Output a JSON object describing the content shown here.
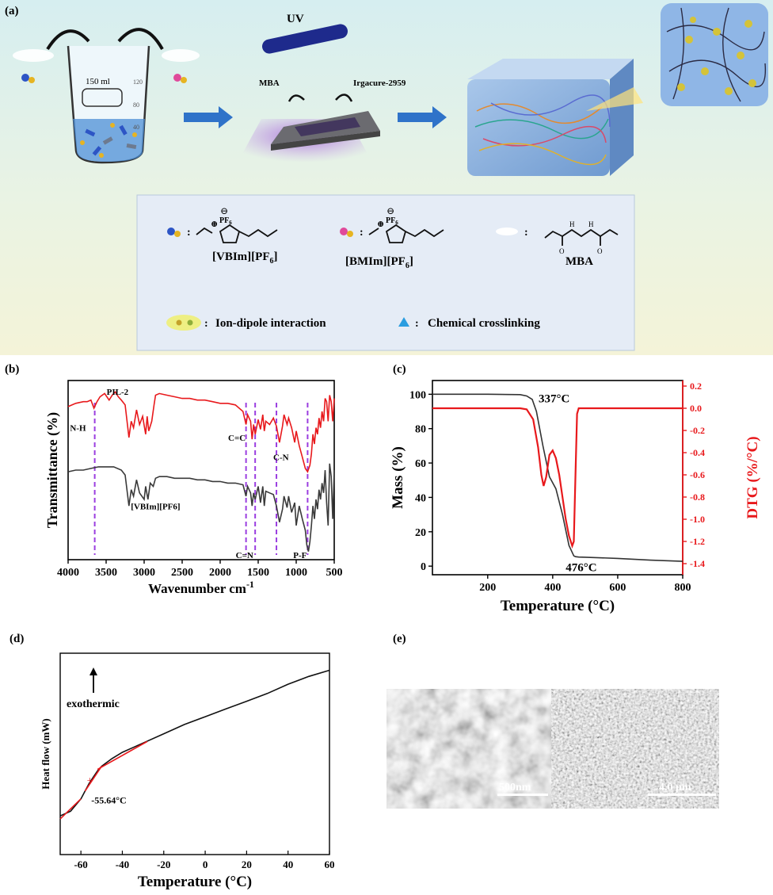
{
  "panel_labels": {
    "a": "(a)",
    "b": "(b)",
    "c": "(c)",
    "d": "(d)",
    "e": "(e)"
  },
  "schematic": {
    "uv_label": "UV",
    "beaker_volume": "150 ml",
    "beaker_marks": [
      "120",
      "80",
      "40"
    ],
    "mba_label": "MBA",
    "initiator_label": "Irgacure-2959",
    "vbim_name": "[VBIm][PF",
    "vbim_sub": "6",
    "bmim_name": "[BMIm][PF",
    "bmim_sub": "6",
    "mba_name": "MBA",
    "pf6": "PF",
    "pf6_sub": "6",
    "legend_ion": "Ion-dipole interaction",
    "legend_cross": "Chemical crosslinking",
    "colon": ":"
  },
  "chart_data": [
    {
      "id": "ftir",
      "type": "line",
      "xlabel": "Wavenumber cm",
      "xlabel_sup": "-1",
      "ylabel": "Transmittance (%)",
      "xlim": [
        4000,
        500
      ],
      "xticks": [
        4000,
        3500,
        3000,
        2500,
        2000,
        1500,
        1000,
        500
      ],
      "series": [
        {
          "name": "PIL-2",
          "color": "#e8191c",
          "x": [
            4000,
            3900,
            3800,
            3750,
            3700,
            3660,
            3620,
            3580,
            3520,
            3460,
            3420,
            3380,
            3340,
            3300,
            3250,
            3200,
            3170,
            3140,
            3100,
            3060,
            3020,
            2980,
            2960,
            2940,
            2900,
            2870,
            2850,
            2800,
            2700,
            2600,
            2500,
            2400,
            2300,
            2200,
            2100,
            2000,
            1900,
            1800,
            1700,
            1660,
            1640,
            1600,
            1580,
            1560,
            1540,
            1500,
            1470,
            1440,
            1420,
            1400,
            1350,
            1300,
            1260,
            1220,
            1180,
            1160,
            1120,
            1100,
            1060,
            1020,
            1000,
            960,
            920,
            880,
            850,
            820,
            800,
            780,
            760,
            740,
            720,
            700,
            680,
            660,
            640,
            620,
            600,
            580,
            560,
            540,
            520,
            500
          ],
          "y": [
            79,
            81,
            82,
            82,
            83,
            78,
            82,
            85,
            87,
            83,
            86,
            88,
            85,
            83,
            80,
            60,
            70,
            66,
            77,
            68,
            73,
            62,
            73,
            64,
            70,
            80,
            86,
            87,
            86,
            85,
            84,
            84,
            83,
            83,
            82,
            81,
            81,
            80,
            76,
            68,
            74,
            70,
            59,
            68,
            62,
            71,
            65,
            74,
            64,
            70,
            68,
            72,
            67,
            57,
            67,
            74,
            68,
            72,
            66,
            57,
            64,
            55,
            48,
            41,
            39,
            43,
            50,
            62,
            56,
            66,
            62,
            72,
            66,
            76,
            70,
            84,
            82,
            70,
            86,
            82,
            70,
            84
          ]
        },
        {
          "name": "[VBIm][PF6]",
          "color": "#3a3a3a",
          "x": [
            4000,
            3900,
            3800,
            3700,
            3600,
            3500,
            3400,
            3300,
            3250,
            3200,
            3170,
            3140,
            3100,
            3060,
            3000,
            2980,
            2950,
            2920,
            2880,
            2850,
            2800,
            2700,
            2600,
            2500,
            2400,
            2300,
            2200,
            2100,
            2000,
            1900,
            1800,
            1700,
            1660,
            1640,
            1600,
            1580,
            1560,
            1540,
            1500,
            1470,
            1440,
            1420,
            1400,
            1350,
            1300,
            1260,
            1220,
            1180,
            1160,
            1120,
            1100,
            1060,
            1020,
            1000,
            960,
            920,
            880,
            860,
            840,
            820,
            800,
            780,
            760,
            740,
            720,
            700,
            680,
            660,
            640,
            620,
            600,
            580,
            560,
            540,
            520,
            500
          ],
          "y": [
            39,
            40,
            40,
            41,
            42,
            42,
            42,
            40,
            37,
            18,
            28,
            24,
            34,
            26,
            22,
            30,
            22,
            32,
            30,
            35,
            36,
            36,
            35,
            35,
            35,
            34,
            34,
            33,
            33,
            32,
            32,
            31,
            24,
            30,
            26,
            18,
            26,
            22,
            30,
            20,
            30,
            18,
            27,
            26,
            25,
            18,
            8,
            16,
            24,
            17,
            24,
            14,
            20,
            6,
            18,
            10,
            3,
            -6,
            -10,
            -4,
            6,
            18,
            10,
            22,
            16,
            28,
            22,
            32,
            26,
            40,
            20,
            6,
            44,
            36,
            10,
            40
          ]
        }
      ],
      "annotations": [
        "PIL-2",
        "[VBIm][PF6]",
        "N-H",
        "C=C",
        "C-N",
        "C=N",
        "P-F"
      ],
      "markers": [
        3650,
        1660,
        1540,
        1260,
        850
      ]
    },
    {
      "id": "tga",
      "type": "line",
      "xlabel": "Temperature (°C)",
      "ylabel": "Mass (%)",
      "y2label": "DTG (%/°C)",
      "xlim": [
        30,
        800
      ],
      "ylim": [
        -5,
        108
      ],
      "y2lim": [
        -1.5,
        0.25
      ],
      "xticks": [
        200,
        400,
        600,
        800
      ],
      "yticks": [
        0,
        20,
        40,
        60,
        80,
        100
      ],
      "y2ticks": [
        0.2,
        0.0,
        -0.2,
        -0.4,
        -0.6,
        -0.8,
        -1.0,
        -1.2,
        -1.4
      ],
      "series": [
        {
          "name": "Mass",
          "color": "#333333",
          "axis": "left",
          "x": [
            30,
            100,
            200,
            300,
            320,
            337,
            350,
            370,
            390,
            410,
            430,
            450,
            465,
            470,
            480,
            500,
            600,
            700,
            800
          ],
          "y": [
            100,
            100,
            100,
            99.8,
            99,
            97,
            90,
            70,
            52,
            45,
            30,
            12,
            6,
            5.5,
            5.3,
            5.2,
            4.5,
            3.5,
            2.8
          ]
        },
        {
          "name": "DTG",
          "color": "#e8191c",
          "axis": "right",
          "x": [
            30,
            100,
            200,
            300,
            320,
            340,
            355,
            365,
            372,
            380,
            390,
            400,
            410,
            420,
            430,
            440,
            450,
            460,
            465,
            470,
            475,
            480,
            500,
            600,
            700,
            800
          ],
          "y": [
            0,
            0,
            0,
            0,
            -0.01,
            -0.1,
            -0.35,
            -0.6,
            -0.7,
            -0.62,
            -0.42,
            -0.38,
            -0.45,
            -0.6,
            -0.8,
            -1.0,
            -1.15,
            -1.24,
            -1.2,
            -0.6,
            -0.05,
            0,
            0,
            0,
            0,
            0
          ]
        }
      ],
      "annotations": [
        "337°C",
        "476°C"
      ]
    },
    {
      "id": "dsc",
      "type": "line",
      "xlabel": "Temperature (°C)",
      "ylabel": "Heat flow (mW)",
      "xlim": [
        -70,
        60
      ],
      "xticks": [
        -60,
        -40,
        -20,
        0,
        20,
        40,
        60
      ],
      "series": [
        {
          "name": "DSC",
          "color": "#111111",
          "x": [
            -70,
            -65,
            -60,
            -58,
            -56,
            -54,
            -52,
            -50,
            -45,
            -40,
            -35,
            -30,
            -20,
            -10,
            0,
            10,
            20,
            30,
            40,
            50,
            60
          ],
          "y": [
            0,
            0.03,
            0.11,
            0.16,
            0.21,
            0.25,
            0.29,
            0.32,
            0.37,
            0.41,
            0.44,
            0.47,
            0.53,
            0.59,
            0.64,
            0.69,
            0.74,
            0.79,
            0.85,
            0.9,
            0.94
          ]
        }
      ],
      "annotations": [
        "-55.64°C",
        "exothermic"
      ]
    }
  ],
  "sem": {
    "scale_left": "500nm",
    "scale_right": "4.0 μm"
  }
}
